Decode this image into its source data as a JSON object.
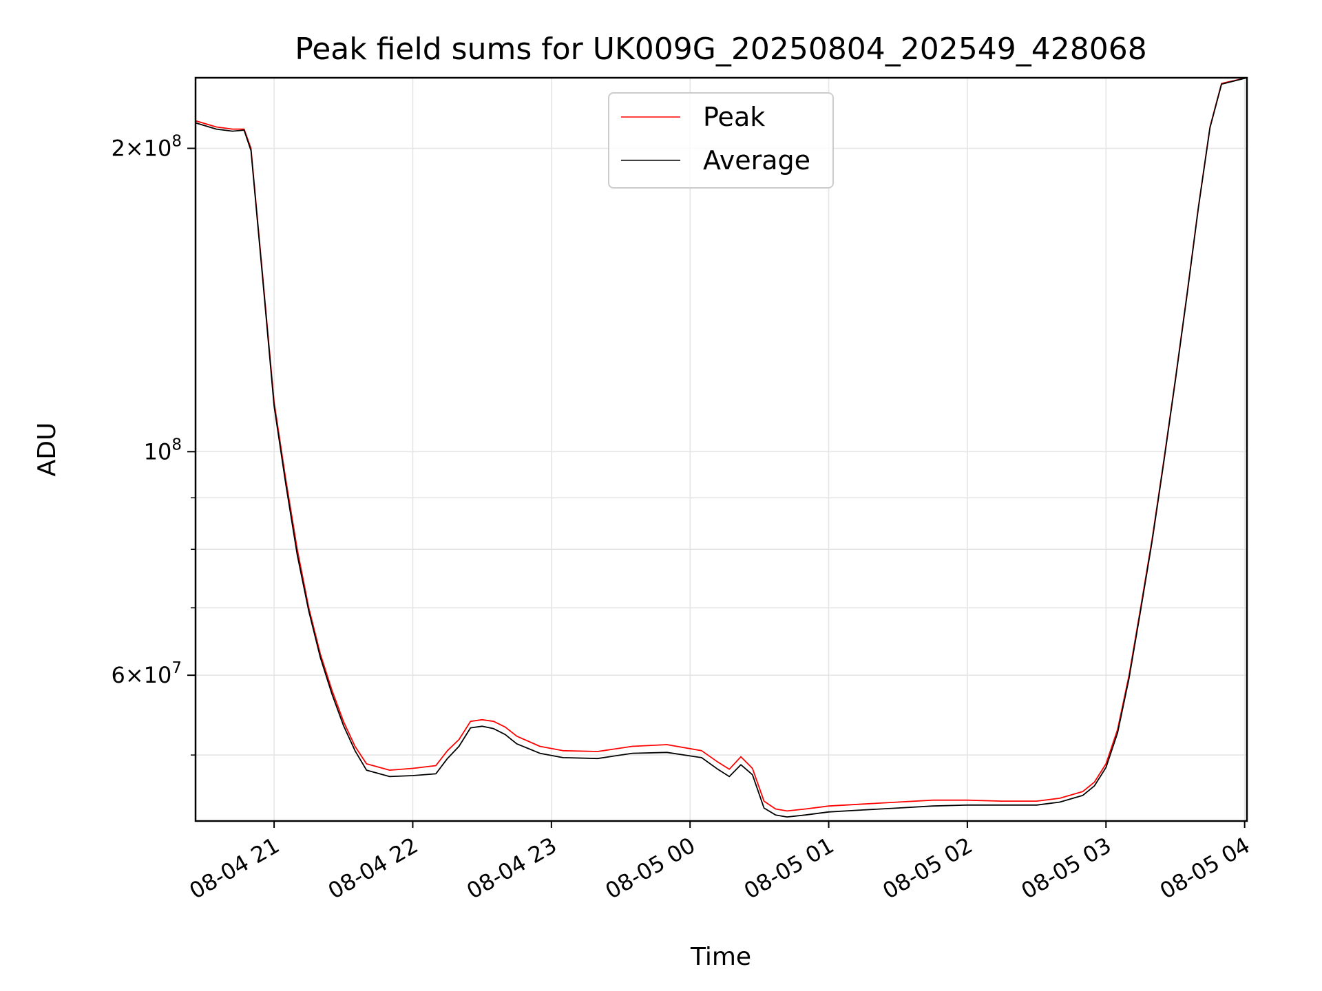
{
  "chart_data": {
    "type": "line",
    "title": "Peak field sums for UK009G_20250804_202549_428068",
    "xlabel": "Time",
    "ylabel": "ADU",
    "y_scale": "log",
    "ylim": [
      43000000,
      235000000
    ],
    "xlim": [
      "2025-08-04 20:26",
      "2025-08-05 04:01"
    ],
    "grid": true,
    "legend_position": "top-center",
    "x_ticks": [
      {
        "value": "2025-08-04 21:00",
        "label": "08-04 21"
      },
      {
        "value": "2025-08-04 22:00",
        "label": "08-04 22"
      },
      {
        "value": "2025-08-04 23:00",
        "label": "08-04 23"
      },
      {
        "value": "2025-08-05 00:00",
        "label": "08-05 00"
      },
      {
        "value": "2025-08-05 01:00",
        "label": "08-05 01"
      },
      {
        "value": "2025-08-05 02:00",
        "label": "08-05 02"
      },
      {
        "value": "2025-08-05 03:00",
        "label": "08-05 03"
      },
      {
        "value": "2025-08-05 04:00",
        "label": "08-05 04"
      }
    ],
    "y_major_ticks": [
      {
        "value": 100000000,
        "mantissa": "",
        "exponent": "8"
      },
      {
        "value": 200000000,
        "mantissa": "2",
        "exponent": "8"
      },
      {
        "value": 60000000,
        "mantissa": "6",
        "exponent": "7"
      }
    ],
    "y_minor_ticks": [
      50000000,
      70000000,
      80000000,
      90000000
    ],
    "series": [
      {
        "name": "Peak",
        "color": "#ff0000",
        "x": [
          "2025-08-04 20:26",
          "2025-08-04 20:35",
          "2025-08-04 20:42",
          "2025-08-04 20:47",
          "2025-08-04 20:50",
          "2025-08-04 20:55",
          "2025-08-04 21:00",
          "2025-08-04 21:05",
          "2025-08-04 21:10",
          "2025-08-04 21:15",
          "2025-08-04 21:20",
          "2025-08-04 21:25",
          "2025-08-04 21:30",
          "2025-08-04 21:35",
          "2025-08-04 21:40",
          "2025-08-04 21:50",
          "2025-08-04 22:00",
          "2025-08-04 22:10",
          "2025-08-04 22:15",
          "2025-08-04 22:20",
          "2025-08-04 22:25",
          "2025-08-04 22:30",
          "2025-08-04 22:35",
          "2025-08-04 22:40",
          "2025-08-04 22:45",
          "2025-08-04 22:55",
          "2025-08-04 23:05",
          "2025-08-04 23:20",
          "2025-08-04 23:35",
          "2025-08-04 23:50",
          "2025-08-05 00:05",
          "2025-08-05 00:12",
          "2025-08-05 00:17",
          "2025-08-05 00:22",
          "2025-08-05 00:27",
          "2025-08-05 00:32",
          "2025-08-05 00:37",
          "2025-08-05 00:42",
          "2025-08-05 00:50",
          "2025-08-05 01:00",
          "2025-08-05 01:15",
          "2025-08-05 01:30",
          "2025-08-05 01:45",
          "2025-08-05 02:00",
          "2025-08-05 02:15",
          "2025-08-05 02:30",
          "2025-08-05 02:40",
          "2025-08-05 02:50",
          "2025-08-05 02:55",
          "2025-08-05 03:00",
          "2025-08-05 03:05",
          "2025-08-05 03:10",
          "2025-08-05 03:15",
          "2025-08-05 03:20",
          "2025-08-05 03:25",
          "2025-08-05 03:30",
          "2025-08-05 03:35",
          "2025-08-05 03:40",
          "2025-08-05 03:45",
          "2025-08-05 03:50",
          "2025-08-05 04:01"
        ],
        "y": [
          213000000,
          210000000,
          209000000,
          209000000,
          200000000,
          150000000,
          112000000,
          94000000,
          80000000,
          70000000,
          63000000,
          58000000,
          54000000,
          51000000,
          49000000,
          48300000,
          48500000,
          48800000,
          50500000,
          51800000,
          54000000,
          54200000,
          54000000,
          53300000,
          52200000,
          51000000,
          50500000,
          50400000,
          51000000,
          51200000,
          50500000,
          49200000,
          48400000,
          49800000,
          48500000,
          45000000,
          44200000,
          44000000,
          44200000,
          44500000,
          44700000,
          44900000,
          45100000,
          45100000,
          45000000,
          45000000,
          45300000,
          46000000,
          47000000,
          49000000,
          53000000,
          60000000,
          70000000,
          82000000,
          98000000,
          118000000,
          143000000,
          175000000,
          210000000,
          232000000,
          235000000
        ]
      },
      {
        "name": "Average",
        "color": "#000000",
        "x": [
          "2025-08-04 20:26",
          "2025-08-04 20:35",
          "2025-08-04 20:42",
          "2025-08-04 20:47",
          "2025-08-04 20:50",
          "2025-08-04 20:55",
          "2025-08-04 21:00",
          "2025-08-04 21:05",
          "2025-08-04 21:10",
          "2025-08-04 21:15",
          "2025-08-04 21:20",
          "2025-08-04 21:25",
          "2025-08-04 21:30",
          "2025-08-04 21:35",
          "2025-08-04 21:40",
          "2025-08-04 21:50",
          "2025-08-04 22:00",
          "2025-08-04 22:10",
          "2025-08-04 22:15",
          "2025-08-04 22:20",
          "2025-08-04 22:25",
          "2025-08-04 22:30",
          "2025-08-04 22:35",
          "2025-08-04 22:40",
          "2025-08-04 22:45",
          "2025-08-04 22:55",
          "2025-08-04 23:05",
          "2025-08-04 23:20",
          "2025-08-04 23:35",
          "2025-08-04 23:50",
          "2025-08-05 00:05",
          "2025-08-05 00:12",
          "2025-08-05 00:17",
          "2025-08-05 00:22",
          "2025-08-05 00:27",
          "2025-08-05 00:32",
          "2025-08-05 00:37",
          "2025-08-05 00:42",
          "2025-08-05 00:50",
          "2025-08-05 01:00",
          "2025-08-05 01:15",
          "2025-08-05 01:30",
          "2025-08-05 01:45",
          "2025-08-05 02:00",
          "2025-08-05 02:15",
          "2025-08-05 02:30",
          "2025-08-05 02:40",
          "2025-08-05 02:50",
          "2025-08-05 02:55",
          "2025-08-05 03:00",
          "2025-08-05 03:05",
          "2025-08-05 03:10",
          "2025-08-05 03:15",
          "2025-08-05 03:20",
          "2025-08-05 03:25",
          "2025-08-05 03:30",
          "2025-08-05 03:35",
          "2025-08-05 03:40",
          "2025-08-05 03:45",
          "2025-08-05 03:50",
          "2025-08-05 04:01"
        ],
        "y": [
          212000000,
          209000000,
          208000000,
          208500000,
          199000000,
          149000000,
          111000000,
          93000000,
          79000000,
          69500000,
          62500000,
          57500000,
          53500000,
          50500000,
          48300000,
          47600000,
          47700000,
          47900000,
          49600000,
          51000000,
          53200000,
          53400000,
          53100000,
          52400000,
          51300000,
          50200000,
          49700000,
          49600000,
          50200000,
          50300000,
          49700000,
          48400000,
          47600000,
          48900000,
          47800000,
          44300000,
          43600000,
          43400000,
          43600000,
          43900000,
          44100000,
          44300000,
          44500000,
          44600000,
          44600000,
          44600000,
          44900000,
          45600000,
          46600000,
          48600000,
          52600000,
          59600000,
          69600000,
          81600000,
          97600000,
          117600000,
          142600000,
          174600000,
          209600000,
          231600000,
          235000000
        ]
      }
    ]
  }
}
